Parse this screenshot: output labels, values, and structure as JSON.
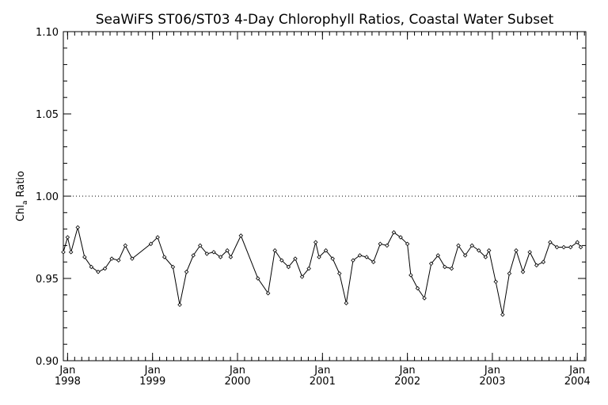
{
  "chart_data": {
    "type": "line",
    "title": "SeaWiFS ST06/ST03 4-Day Chlorophyll Ratios, Coastal Water Subset",
    "ylabel_main": "Chl",
    "ylabel_sub": "a",
    "ylabel_rest": " Ratio",
    "xlabel": "",
    "ylim": [
      0.9,
      1.1
    ],
    "xlim": [
      1997.95,
      2004.1
    ],
    "y_ticks": [
      "0.90",
      "0.95",
      "1.00",
      "1.05",
      "1.10"
    ],
    "x_ticks": [
      {
        "month": "Jan",
        "year": "1998"
      },
      {
        "month": "Jan",
        "year": "1999"
      },
      {
        "month": "Jan",
        "year": "2000"
      },
      {
        "month": "Jan",
        "year": "2001"
      },
      {
        "month": "Jan",
        "year": "2002"
      },
      {
        "month": "Jan",
        "year": "2003"
      },
      {
        "month": "Jan",
        "year": "2004"
      }
    ],
    "reference_line": 1.0,
    "series": [
      {
        "x": [
          1997.95,
          1998.0,
          1998.04,
          1998.12,
          1998.2,
          1998.28,
          1998.36,
          1998.44,
          1998.52,
          1998.6,
          1998.68,
          1998.76,
          1998.98,
          1999.06,
          1999.14,
          1999.24,
          1999.32,
          1999.4,
          1999.48,
          1999.56,
          1999.64,
          1999.72,
          1999.8,
          1999.88,
          1999.92,
          2000.04,
          2000.24,
          2000.36,
          2000.44,
          2000.52,
          2000.6,
          2000.68,
          2000.76,
          2000.84,
          2000.92,
          2000.96,
          2001.04,
          2001.12,
          2001.2,
          2001.28,
          2001.36,
          2001.44,
          2001.52,
          2001.6,
          2001.68,
          2001.76,
          2001.84,
          2001.92,
          2002.0,
          2002.04,
          2002.12,
          2002.2,
          2002.28,
          2002.36,
          2002.44,
          2002.52,
          2002.6,
          2002.68,
          2002.76,
          2002.84,
          2002.92,
          2002.96,
          2003.04,
          2003.12,
          2003.2,
          2003.28,
          2003.36,
          2003.44,
          2003.52,
          2003.6,
          2003.68,
          2003.76,
          2003.84,
          2003.92,
          2004.0,
          2004.04
        ],
        "y": [
          0.966,
          0.975,
          0.966,
          0.981,
          0.963,
          0.957,
          0.954,
          0.956,
          0.962,
          0.961,
          0.97,
          0.962,
          0.971,
          0.975,
          0.963,
          0.957,
          0.934,
          0.954,
          0.964,
          0.97,
          0.965,
          0.966,
          0.963,
          0.967,
          0.963,
          0.976,
          0.95,
          0.941,
          0.967,
          0.961,
          0.957,
          0.962,
          0.951,
          0.956,
          0.972,
          0.963,
          0.967,
          0.962,
          0.953,
          0.935,
          0.961,
          0.964,
          0.963,
          0.96,
          0.971,
          0.97,
          0.978,
          0.975,
          0.971,
          0.952,
          0.944,
          0.938,
          0.959,
          0.964,
          0.957,
          0.956,
          0.97,
          0.964,
          0.97,
          0.967,
          0.963,
          0.967,
          0.948,
          0.928,
          0.953,
          0.967,
          0.954,
          0.966,
          0.958,
          0.96,
          0.972,
          0.969,
          0.969,
          0.969,
          0.972,
          0.969
        ]
      }
    ]
  }
}
